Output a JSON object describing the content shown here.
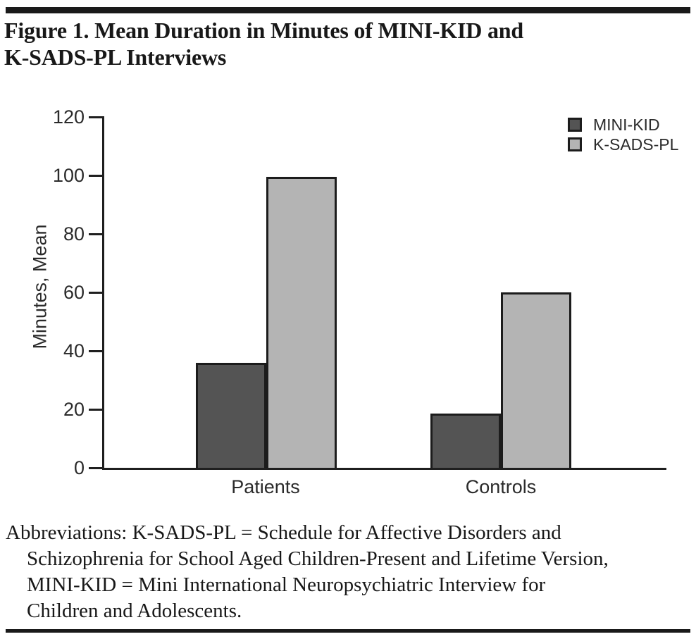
{
  "figure": {
    "title_lines": [
      "Figure 1. Mean Duration in Minutes of MINI-KID and",
      "K-SADS-PL Interviews"
    ],
    "footnote_lines": [
      "Abbreviations: K-SADS-PL = Schedule for Affective Disorders and",
      "Schizophrenia for School Aged Children-Present and Lifetime Version,",
      "MINI-KID = Mini International Neuropsychiatric Interview for",
      "Children and Adolescents."
    ]
  },
  "chart_data": {
    "type": "bar",
    "title": "Figure 1. Mean Duration in Minutes of MINI-KID and K-SADS-PL Interviews",
    "categories": [
      "Patients",
      "Controls"
    ],
    "series": [
      {
        "name": "MINI-KID",
        "color": "#545454",
        "values": [
          36,
          18.5
        ]
      },
      {
        "name": "K-SADS-PL",
        "color": "#b4b4b4",
        "values": [
          99.5,
          60
        ]
      }
    ],
    "xlabel": "",
    "ylabel": "Minutes, Mean",
    "ylim": [
      0,
      120
    ],
    "yticks": [
      0,
      20,
      40,
      60,
      80,
      100,
      120
    ],
    "grid": false,
    "legend_position": "top-right",
    "bar_outline_color": "#1c1c1c"
  }
}
